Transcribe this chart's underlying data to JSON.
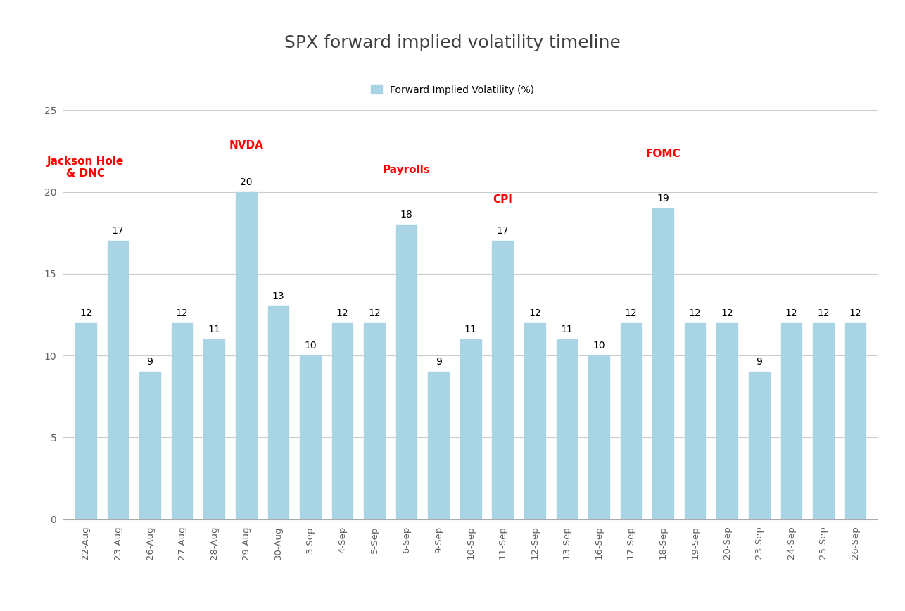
{
  "title": "SPX forward implied volatility timeline",
  "legend_label": "Forward Implied Volatility (%)",
  "categories": [
    "22-Aug",
    "23-Aug",
    "26-Aug",
    "27-Aug",
    "28-Aug",
    "29-Aug",
    "30-Aug",
    "3-Sep",
    "4-Sep",
    "5-Sep",
    "6-Sep",
    "9-Sep",
    "10-Sep",
    "11-Sep",
    "12-Sep",
    "13-Sep",
    "16-Sep",
    "17-Sep",
    "18-Sep",
    "19-Sep",
    "20-Sep",
    "23-Sep",
    "24-Sep",
    "25-Sep",
    "26-Sep"
  ],
  "values": [
    12,
    17,
    9,
    12,
    11,
    20,
    13,
    10,
    12,
    12,
    18,
    9,
    11,
    17,
    12,
    11,
    10,
    12,
    19,
    12,
    12,
    9,
    12,
    12,
    12
  ],
  "bar_color": "#a8d4e6",
  "bar_edgecolor": "#a8d4e6",
  "annotations": [
    {
      "index": 0,
      "text": "Jackson Hole\n& DNC",
      "color": "red",
      "fontsize": 11,
      "fontweight": "bold",
      "y_data": 20.8
    },
    {
      "index": 5,
      "text": "NVDA",
      "color": "red",
      "fontsize": 11,
      "fontweight": "bold",
      "y_data": 22.5
    },
    {
      "index": 10,
      "text": "Payrolls",
      "color": "red",
      "fontsize": 11,
      "fontweight": "bold",
      "y_data": 21.0
    },
    {
      "index": 13,
      "text": "CPI",
      "color": "red",
      "fontsize": 11,
      "fontweight": "bold",
      "y_data": 19.2
    },
    {
      "index": 18,
      "text": "FOMC",
      "color": "red",
      "fontsize": 11,
      "fontweight": "bold",
      "y_data": 22.0
    }
  ],
  "ylim": [
    0,
    25
  ],
  "yticks": [
    0,
    5,
    10,
    15,
    20,
    25
  ],
  "background_color": "#ffffff",
  "grid_color": "#cccccc",
  "title_fontsize": 18,
  "value_fontsize": 10,
  "title_color": "#404040",
  "tick_color": "#606060"
}
